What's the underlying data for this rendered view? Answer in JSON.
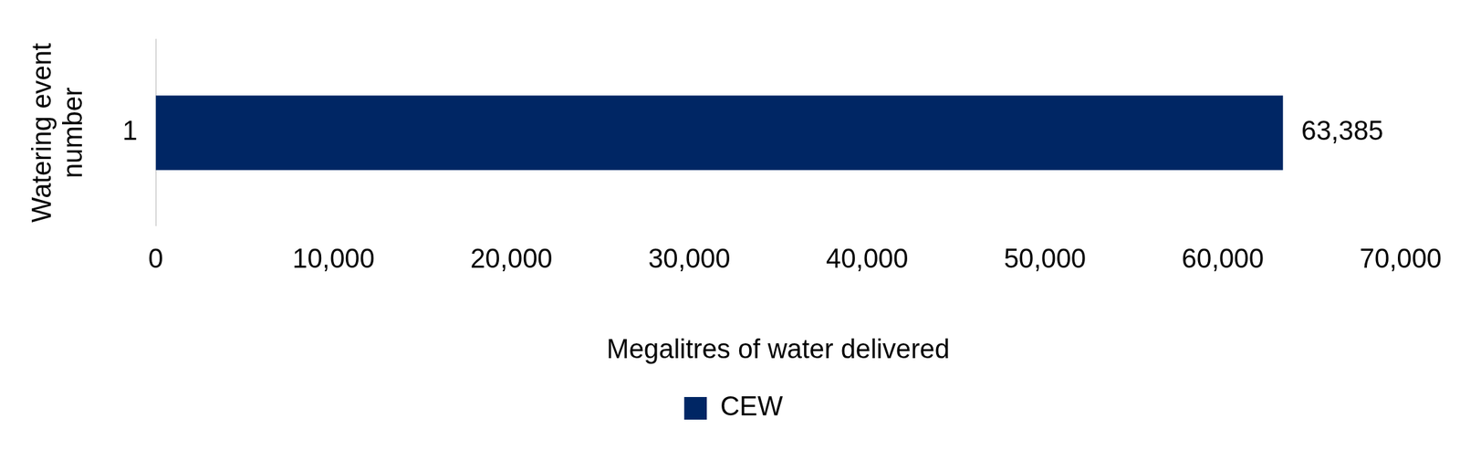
{
  "chart_data": {
    "type": "bar",
    "orientation": "horizontal",
    "categories": [
      "1"
    ],
    "series": [
      {
        "name": "CEW",
        "color": "#002664",
        "values": [
          63385
        ],
        "value_labels": [
          "63,385"
        ]
      }
    ],
    "xlabel": "Megalitres of water delivered",
    "ylabel": "Watering event number",
    "xlim": [
      0,
      70000
    ],
    "xticks": [
      0,
      {
        "value": 10000,
        "label": "10,000"
      },
      {
        "value": 20000,
        "label": "20,000"
      },
      {
        "value": 30000,
        "label": "30,000"
      },
      {
        "value": 40000,
        "label": "40,000"
      },
      {
        "value": 50000,
        "label": "50,000"
      },
      {
        "value": 60000,
        "label": "60,000"
      },
      {
        "value": 70000,
        "label": "70,000"
      }
    ],
    "grid": false,
    "legend": "bottom",
    "data_labels": true
  }
}
